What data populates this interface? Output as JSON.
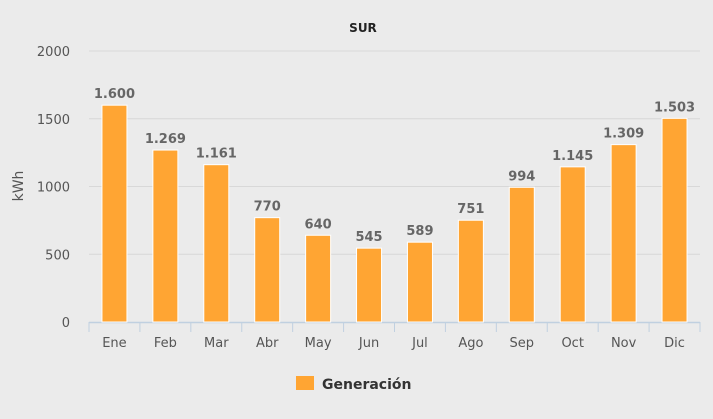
{
  "chart_data": {
    "type": "bar",
    "title": "SUR",
    "ylabel": "kWh",
    "xlabel": "",
    "categories": [
      "Ene",
      "Feb",
      "Mar",
      "Abr",
      "May",
      "Jun",
      "Jul",
      "Ago",
      "Sep",
      "Oct",
      "Nov",
      "Dic"
    ],
    "series": [
      {
        "name": "Generación",
        "values": [
          1600,
          1269,
          1161,
          770,
          640,
          545,
          589,
          751,
          994,
          1145,
          1309,
          1503
        ]
      }
    ],
    "data_labels": [
      "1.600",
      "1.269",
      "1.161",
      "770",
      "640",
      "545",
      "589",
      "751",
      "994",
      "1.145",
      "1.309",
      "1.503"
    ],
    "ylim": [
      0,
      2000
    ],
    "yticks": [
      0,
      500,
      1000,
      1500,
      2000
    ],
    "grid": true,
    "legend": "bottom",
    "colors": {
      "bar": "#ffa533",
      "background": "#ebebeb",
      "grid": "#d8d8d8",
      "axis": "#c0d0e0"
    }
  }
}
